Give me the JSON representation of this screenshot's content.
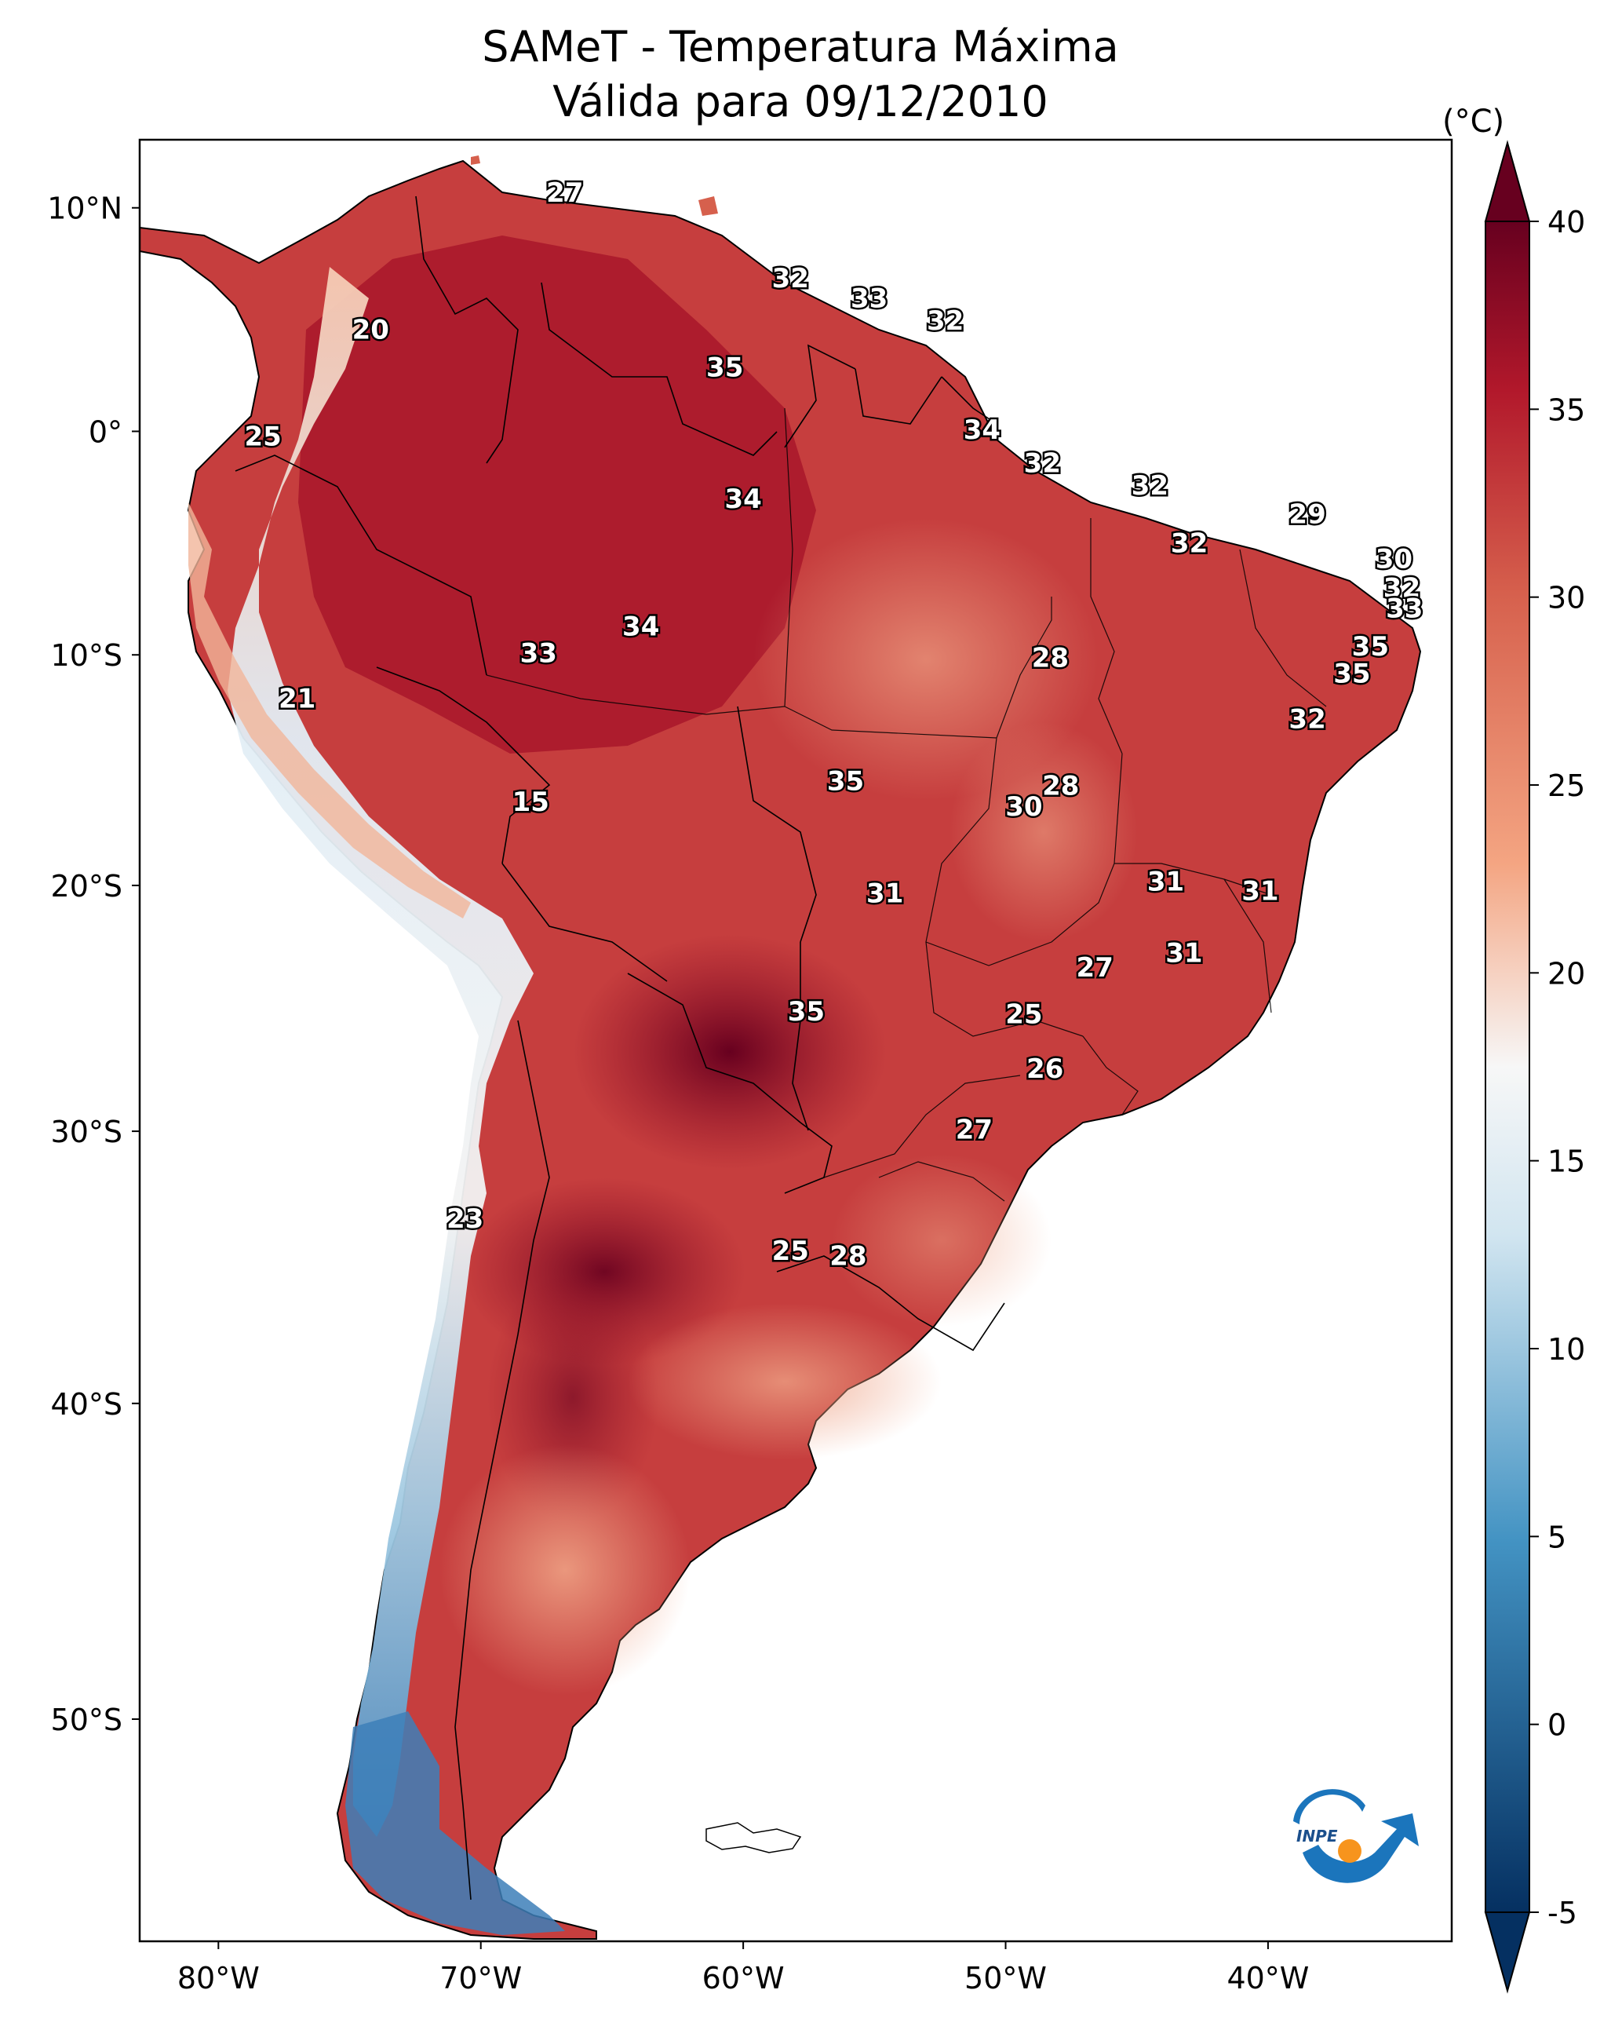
{
  "title": "SAMeT - Temperatura Máxima",
  "subtitle": "Válida para 09/12/2010",
  "colorbar": {
    "unit": "(°C)",
    "ticks": [
      "40",
      "35",
      "30",
      "25",
      "20",
      "15",
      "10",
      "5",
      "0",
      "-5"
    ],
    "range": [
      -5,
      40
    ],
    "colors": {
      "min": "#053061",
      "cool": "#4393c3",
      "neutral": "#f7f7f7",
      "warm": "#f4a582",
      "hot": "#d6604d",
      "max": "#67001f"
    }
  },
  "axes": {
    "lon_ticks": [
      "80°W",
      "70°W",
      "60°W",
      "50°W",
      "40°W"
    ],
    "lon_values": [
      -80,
      -70,
      -60,
      -50,
      -40
    ],
    "lat_ticks": [
      "10°N",
      "0°",
      "10°S",
      "20°S",
      "30°S",
      "40°S",
      "50°S"
    ],
    "lat_values": [
      10,
      0,
      -10,
      -20,
      -30,
      -40,
      -50
    ],
    "lon_range": [
      -83,
      -33
    ],
    "lat_range": [
      -56,
      13
    ]
  },
  "stations": [
    {
      "v": "27",
      "lon": -66.8,
      "lat": 10.6
    },
    {
      "v": "20",
      "lon": -74.2,
      "lat": 4.5
    },
    {
      "v": "25",
      "lon": -78.3,
      "lat": -0.3
    },
    {
      "v": "32",
      "lon": -58.2,
      "lat": 6.8
    },
    {
      "v": "33",
      "lon": -55.2,
      "lat": 5.9
    },
    {
      "v": "32",
      "lon": -52.3,
      "lat": 4.9
    },
    {
      "v": "35",
      "lon": -60.7,
      "lat": 2.8
    },
    {
      "v": "34",
      "lon": -50.9,
      "lat": 0.0
    },
    {
      "v": "32",
      "lon": -48.6,
      "lat": -1.5
    },
    {
      "v": "32",
      "lon": -44.5,
      "lat": -2.5
    },
    {
      "v": "34",
      "lon": -60.0,
      "lat": -3.1
    },
    {
      "v": "29",
      "lon": -38.5,
      "lat": -3.8
    },
    {
      "v": "32",
      "lon": -43.0,
      "lat": -5.1
    },
    {
      "v": "30",
      "lon": -35.2,
      "lat": -5.8
    },
    {
      "v": "32",
      "lon": -34.9,
      "lat": -7.1
    },
    {
      "v": "33",
      "lon": -34.8,
      "lat": -8.0
    },
    {
      "v": "34",
      "lon": -63.9,
      "lat": -8.8
    },
    {
      "v": "33",
      "lon": -67.8,
      "lat": -10.0
    },
    {
      "v": "28",
      "lon": -48.3,
      "lat": -10.2
    },
    {
      "v": "35",
      "lon": -36.1,
      "lat": -9.7
    },
    {
      "v": "35",
      "lon": -36.8,
      "lat": -10.9
    },
    {
      "v": "21",
      "lon": -77.0,
      "lat": -12.0
    },
    {
      "v": "32",
      "lon": -38.5,
      "lat": -12.9
    },
    {
      "v": "35",
      "lon": -56.1,
      "lat": -15.6
    },
    {
      "v": "28",
      "lon": -47.9,
      "lat": -15.8
    },
    {
      "v": "30",
      "lon": -49.3,
      "lat": -16.7
    },
    {
      "v": "15",
      "lon": -68.1,
      "lat": -16.5
    },
    {
      "v": "31",
      "lon": -43.9,
      "lat": -19.9
    },
    {
      "v": "31",
      "lon": -40.3,
      "lat": -20.3
    },
    {
      "v": "31",
      "lon": -54.6,
      "lat": -20.4
    },
    {
      "v": "31",
      "lon": -43.2,
      "lat": -22.9
    },
    {
      "v": "27",
      "lon": -46.6,
      "lat": -23.5
    },
    {
      "v": "35",
      "lon": -57.6,
      "lat": -25.3
    },
    {
      "v": "25",
      "lon": -49.3,
      "lat": -25.4
    },
    {
      "v": "26",
      "lon": -48.5,
      "lat": -27.6
    },
    {
      "v": "27",
      "lon": -51.2,
      "lat": -30.0
    },
    {
      "v": "23",
      "lon": -70.6,
      "lat": -33.4
    },
    {
      "v": "25",
      "lon": -58.2,
      "lat": -34.6
    },
    {
      "v": "28",
      "lon": -56.0,
      "lat": -34.8
    }
  ],
  "logo": {
    "text": "INPE"
  }
}
